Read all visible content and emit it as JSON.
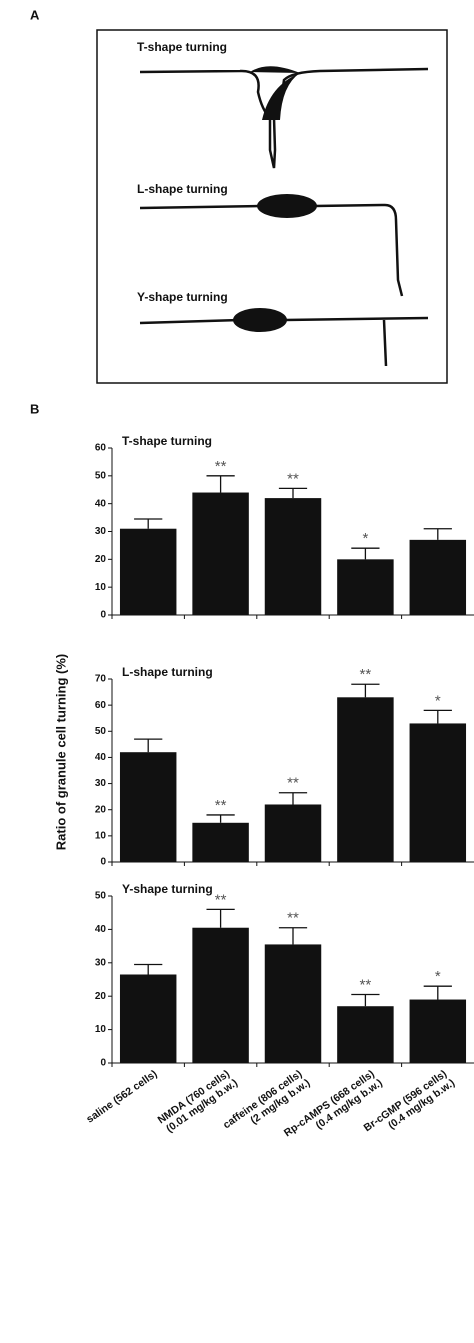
{
  "panel_a": {
    "label": "A",
    "drawings": [
      "T-shape turning",
      "L-shape turning",
      "Y-shape turning"
    ]
  },
  "panel_b": {
    "label": "B",
    "y_label": "Ratio of granule cell turning (%)"
  },
  "chart_data": [
    {
      "type": "bar",
      "title": "T-shape turning",
      "color": "#111111",
      "categories": [
        null,
        null,
        null,
        null,
        null
      ],
      "values": [
        31,
        44,
        42,
        20,
        27
      ],
      "errors": [
        3.5,
        6,
        3.5,
        4,
        4
      ],
      "significance": [
        null,
        "**",
        "**",
        "*",
        null
      ],
      "ylim": [
        0,
        60
      ],
      "yticks": [
        0,
        10,
        20,
        30,
        40,
        50,
        60
      ]
    },
    {
      "type": "bar",
      "title": "L-shape turning",
      "color": "#111111",
      "categories": [
        null,
        null,
        null,
        null,
        null
      ],
      "values": [
        42,
        15,
        22,
        63,
        53
      ],
      "errors": [
        5,
        3,
        4.5,
        5,
        5
      ],
      "significance": [
        null,
        "**",
        "**",
        "**",
        "*"
      ],
      "ylim": [
        0,
        70
      ],
      "yticks": [
        0,
        10,
        20,
        30,
        40,
        50,
        60,
        70
      ]
    },
    {
      "type": "bar",
      "title": "Y-shape turning",
      "color": "#111111",
      "categories": [
        [
          "saline (562 cells)"
        ],
        [
          "NMDA (760 cells)",
          "(0.01 mg/kg b.w.)"
        ],
        [
          "caffeine (806 cells)",
          "(2 mg/kg b.w.)"
        ],
        [
          "Rp-cAMPS (668 cells)",
          "(0.4 mg/kg b.w.)"
        ],
        [
          "Br-cGMP (596 cells)",
          "(0.4 mg/kg b.w.)"
        ]
      ],
      "values": [
        26.5,
        40.5,
        35.5,
        17,
        19
      ],
      "errors": [
        3,
        5.5,
        5,
        3.5,
        4
      ],
      "significance": [
        null,
        "**",
        "**",
        "**",
        "*"
      ],
      "ylim": [
        0,
        50
      ],
      "yticks": [
        0,
        10,
        20,
        30,
        40,
        50
      ]
    }
  ]
}
